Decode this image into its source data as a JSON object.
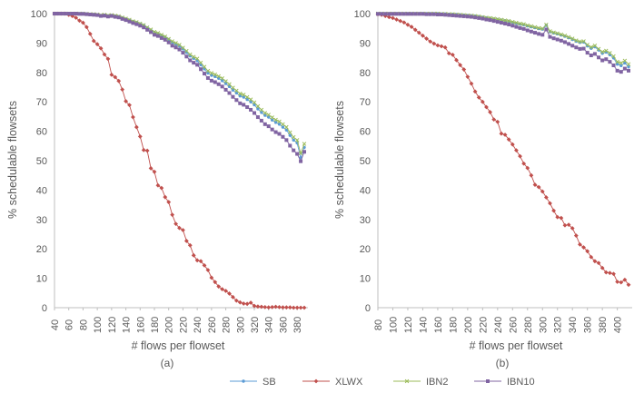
{
  "chart_data": [
    {
      "type": "line",
      "caption": "(a)",
      "xlabel": "# flows per flowset",
      "ylabel": "% schedulable flowsets",
      "xlim": [
        40,
        390
      ],
      "ylim": [
        0,
        100
      ],
      "xticks": [
        40,
        60,
        80,
        100,
        120,
        140,
        160,
        180,
        200,
        220,
        240,
        260,
        280,
        300,
        320,
        340,
        360,
        380
      ],
      "yticks": [
        0,
        10,
        20,
        30,
        40,
        50,
        60,
        70,
        80,
        90,
        100
      ],
      "grid": false,
      "x": [
        40,
        45,
        50,
        55,
        60,
        65,
        70,
        75,
        80,
        85,
        90,
        95,
        100,
        105,
        110,
        115,
        120,
        125,
        130,
        135,
        140,
        145,
        150,
        155,
        160,
        165,
        170,
        175,
        180,
        185,
        190,
        195,
        200,
        205,
        210,
        215,
        220,
        225,
        230,
        235,
        240,
        245,
        250,
        255,
        260,
        265,
        270,
        275,
        280,
        285,
        290,
        295,
        300,
        305,
        310,
        315,
        320,
        325,
        330,
        335,
        340,
        345,
        350,
        355,
        360,
        365,
        370,
        375,
        380,
        385,
        390
      ],
      "series": [
        {
          "name": "SB",
          "values": [
            100,
            100,
            100,
            100,
            100,
            100,
            100,
            100,
            100,
            99.9,
            99.8,
            99.7,
            99.6,
            99.4,
            99.5,
            99.3,
            99.4,
            99.2,
            99,
            98.6,
            98.2,
            97.8,
            97.3,
            97,
            96.5,
            96,
            95.2,
            94.4,
            93.6,
            93.2,
            92.6,
            92,
            91.2,
            90.2,
            89.6,
            89,
            88,
            86.8,
            85.6,
            84.8,
            84,
            82.6,
            81.2,
            79.8,
            79,
            78.6,
            78,
            77.2,
            76.2,
            75.2,
            74,
            73,
            72,
            71.6,
            70.8,
            70,
            69,
            67.6,
            66.4,
            65.4,
            64.8,
            63.8,
            63,
            62.4,
            61.4,
            60.4,
            58.6,
            57,
            56,
            51,
            54.5
          ]
        },
        {
          "name": "XLWX",
          "values": [
            100,
            100,
            100,
            100,
            99.6,
            99.2,
            98.6,
            97.6,
            96.9,
            95.4,
            93.1,
            90.7,
            89.6,
            88.2,
            86.1,
            84.6,
            79.2,
            78.4,
            77.1,
            74.2,
            70.2,
            68.9,
            64.8,
            61.4,
            58.2,
            53.6,
            53.4,
            47.4,
            46.2,
            41.6,
            40.7,
            37.6,
            35.9,
            31.6,
            28.5,
            27.1,
            26.4,
            22.7,
            21.2,
            17.8,
            16.1,
            15.8,
            14.4,
            12.8,
            10.2,
            8.7,
            7.2,
            6.3,
            5.7,
            4.8,
            3.6,
            2.4,
            1.8,
            1.4,
            1.3,
            1.7,
            0.6,
            0.4,
            0.3,
            0.2,
            0.1,
            0.2,
            0.3,
            0.2,
            0.1,
            0.1,
            0.1,
            0,
            0,
            0,
            0
          ]
        },
        {
          "name": "IBN2",
          "values": [
            100,
            100,
            100,
            100,
            100,
            100,
            100,
            100,
            100,
            99.9,
            99.8,
            99.8,
            99.7,
            99.5,
            99.6,
            99.4,
            99.5,
            99.3,
            99.1,
            98.7,
            98.3,
            97.9,
            97.4,
            97.1,
            96.6,
            96.1,
            95.3,
            94.6,
            93.8,
            93.4,
            92.8,
            92.2,
            91.4,
            90.6,
            90,
            89.4,
            88.4,
            87.3,
            86.1,
            85.3,
            84.7,
            83.3,
            81.9,
            80.5,
            79.8,
            79.3,
            78.7,
            78,
            77,
            76,
            74.8,
            73.8,
            72.8,
            72.4,
            71.6,
            70.8,
            69.8,
            68.5,
            67.3,
            66.2,
            65.6,
            64.7,
            63.9,
            63.3,
            62.4,
            61.4,
            59.6,
            58,
            57,
            52.5,
            55.7
          ]
        },
        {
          "name": "IBN10",
          "values": [
            100,
            100,
            100,
            100,
            100,
            100,
            100,
            99.9,
            99.9,
            99.8,
            99.7,
            99.6,
            99.5,
            99.2,
            99.3,
            99,
            99.2,
            98.9,
            98.7,
            98.2,
            97.8,
            97.3,
            96.8,
            96.4,
            95.9,
            95.3,
            94.5,
            93.7,
            92.8,
            92.4,
            91.7,
            91.1,
            90.2,
            89.1,
            88.5,
            87.8,
            86.7,
            85.4,
            84.1,
            83.3,
            82.6,
            81.1,
            79.6,
            78.1,
            77.2,
            76.7,
            76,
            75.2,
            74.1,
            73,
            71.7,
            70.6,
            69.5,
            69,
            68.2,
            67.3,
            66.2,
            64.8,
            63.6,
            62.4,
            61.7,
            60.6,
            59.7,
            59.1,
            58.1,
            57,
            55.1,
            53.5,
            52.3,
            49.8,
            53
          ]
        }
      ]
    },
    {
      "type": "line",
      "caption": "(b)",
      "xlabel": "# flows per flowset",
      "ylabel": "% schedulable flowsets",
      "xlim": [
        80,
        415
      ],
      "ylim": [
        0,
        100
      ],
      "xticks": [
        80,
        100,
        120,
        140,
        160,
        180,
        200,
        220,
        240,
        260,
        280,
        300,
        320,
        340,
        360,
        380,
        400
      ],
      "yticks": [
        0,
        10,
        20,
        30,
        40,
        50,
        60,
        70,
        80,
        90,
        100
      ],
      "grid": false,
      "x": [
        80,
        85,
        90,
        95,
        100,
        105,
        110,
        115,
        120,
        125,
        130,
        135,
        140,
        145,
        150,
        155,
        160,
        165,
        170,
        175,
        180,
        185,
        190,
        195,
        200,
        205,
        210,
        215,
        220,
        225,
        230,
        235,
        240,
        245,
        250,
        255,
        260,
        265,
        270,
        275,
        280,
        285,
        290,
        295,
        300,
        305,
        310,
        315,
        320,
        325,
        330,
        335,
        340,
        345,
        350,
        355,
        360,
        365,
        370,
        375,
        380,
        385,
        390,
        395,
        400,
        405,
        410,
        415
      ],
      "series": [
        {
          "name": "SB",
          "values": [
            100,
            100,
            100,
            100,
            100,
            100,
            100,
            100,
            100,
            100,
            100,
            100,
            100,
            100,
            100,
            100,
            100,
            99.9,
            99.9,
            99.8,
            99.8,
            99.7,
            99.6,
            99.5,
            99.4,
            99.3,
            99.2,
            99,
            98.8,
            98.6,
            98.4,
            98.2,
            98,
            97.8,
            97.6,
            97.4,
            97,
            96.7,
            96.4,
            96.2,
            95.8,
            95.5,
            95.2,
            94.9,
            94.7,
            96,
            93.8,
            93.4,
            93.1,
            92.7,
            92.3,
            91.8,
            91.2,
            90.6,
            90.2,
            90.3,
            89,
            88.2,
            88.7,
            87.6,
            86.5,
            86.9,
            86,
            84.9,
            82.8,
            82.3,
            83.2,
            81.9
          ]
        },
        {
          "name": "XLWX",
          "values": [
            99.8,
            99.6,
            99.2,
            98.8,
            98.5,
            98,
            97.5,
            97,
            96.2,
            95.5,
            94.5,
            93.5,
            92.5,
            91.5,
            90.5,
            89.8,
            89.2,
            88.9,
            88.5,
            86.5,
            86,
            84.2,
            82.5,
            81,
            78.5,
            76.2,
            73.5,
            71.5,
            70,
            68.2,
            66.5,
            64,
            63.2,
            59.2,
            58.8,
            57.2,
            55.5,
            53.5,
            51.5,
            49,
            47.5,
            45,
            41.8,
            41,
            39.5,
            37.5,
            35.5,
            33,
            30.8,
            30.5,
            28,
            28.2,
            27,
            24.5,
            21.5,
            20.5,
            19.2,
            17.2,
            15.8,
            15.2,
            13.5,
            12,
            11.8,
            11.5,
            8.8,
            8.6,
            9.5,
            7.8
          ]
        },
        {
          "name": "IBN2",
          "values": [
            100,
            100,
            100,
            100,
            100,
            100,
            100,
            100,
            100,
            100,
            100,
            100,
            100,
            100,
            100,
            100,
            100,
            99.9,
            99.9,
            99.8,
            99.8,
            99.7,
            99.6,
            99.5,
            99.4,
            99.3,
            99.2,
            99,
            98.8,
            98.6,
            98.5,
            98.3,
            98.1,
            97.9,
            97.7,
            97.5,
            97.2,
            96.9,
            96.6,
            96.4,
            96,
            95.7,
            95.4,
            95.1,
            94.9,
            96.2,
            94,
            93.6,
            93.3,
            92.9,
            92.5,
            92,
            91.5,
            90.9,
            90.5,
            90.6,
            89.4,
            88.6,
            89.1,
            88,
            87,
            87.4,
            86.6,
            85.5,
            83.6,
            83.2,
            84,
            82.8
          ]
        },
        {
          "name": "IBN10",
          "values": [
            99.9,
            99.9,
            99.9,
            99.9,
            99.9,
            99.9,
            99.9,
            99.9,
            99.9,
            99.9,
            99.9,
            99.9,
            99.9,
            99.8,
            99.8,
            99.8,
            99.7,
            99.7,
            99.6,
            99.5,
            99.4,
            99.3,
            99.2,
            99.1,
            99,
            98.9,
            98.7,
            98.5,
            98.3,
            98,
            97.8,
            97.5,
            97.2,
            96.9,
            96.6,
            96.3,
            95.9,
            95.5,
            95.1,
            94.8,
            94.3,
            93.9,
            93.5,
            93.1,
            92.8,
            94.6,
            92.1,
            91.6,
            91.2,
            90.8,
            90.3,
            89.7,
            89.1,
            88.5,
            88,
            88.1,
            86.7,
            85.8,
            86.3,
            85.1,
            84.1,
            84.5,
            83.6,
            82.4,
            80.6,
            80.2,
            81.3,
            80.6
          ]
        }
      ]
    }
  ],
  "legend": [
    {
      "name": "SB",
      "color": "#5b9bd5",
      "marker": "circle"
    },
    {
      "name": "XLWX",
      "color": "#c0504d",
      "marker": "diamond"
    },
    {
      "name": "IBN2",
      "color": "#9bbb59",
      "marker": "x"
    },
    {
      "name": "IBN10",
      "color": "#8064a2",
      "marker": "square"
    }
  ],
  "colors": {
    "axis": "#bfbfbf",
    "tick_text": "#595959"
  }
}
